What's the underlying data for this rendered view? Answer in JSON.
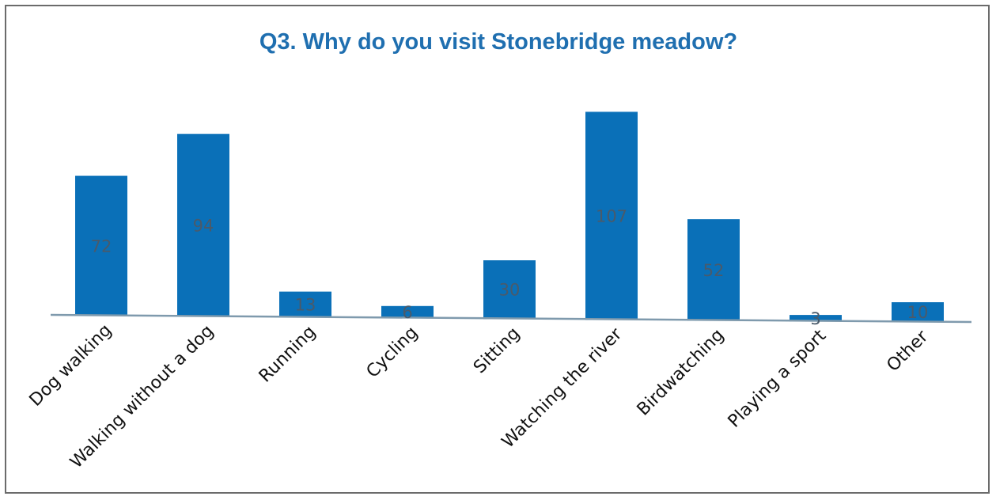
{
  "chart_data": {
    "type": "bar",
    "title": "Q3. Why do you visit Stonebridge meadow?",
    "xlabel": "",
    "ylabel": "",
    "categories": [
      "Dog walking",
      "Walking without a dog",
      "Running",
      "Cycling",
      "Sitting",
      "Watching the river",
      "Birdwatching",
      "Playing a sport",
      "Other"
    ],
    "values": [
      72,
      94,
      13,
      6,
      30,
      107,
      52,
      3,
      10
    ],
    "ylim": [
      0,
      110
    ],
    "grid": false,
    "legend": "none",
    "data_labels": true,
    "bar_color": "#0a70b8",
    "axis_color": "#7f9aad",
    "title_color": "#1f6fb0"
  }
}
